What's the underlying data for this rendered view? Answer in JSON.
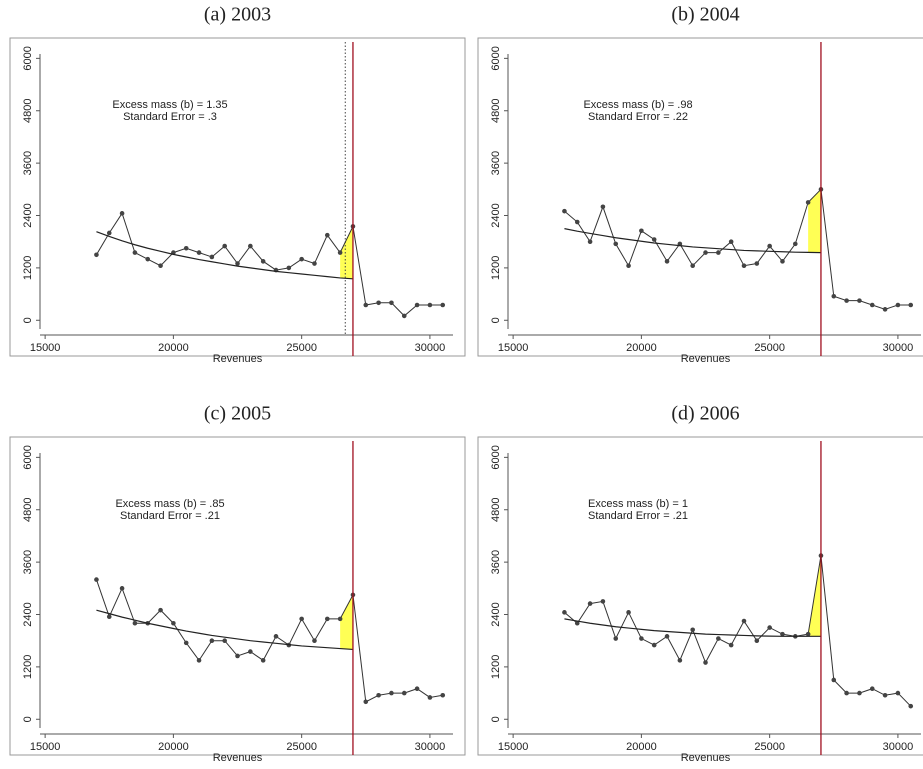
{
  "chart_data": [
    {
      "type": "line",
      "title": "(a) 2003",
      "xlabel": "Revenues",
      "annotations": [
        "Excess mass (b) = 1.35",
        "Standard Error = .3"
      ],
      "x": [
        17000,
        17500,
        18000,
        18500,
        19000,
        19500,
        20000,
        20500,
        21000,
        21500,
        22000,
        22500,
        23000,
        23500,
        24000,
        24500,
        25000,
        25500,
        26000,
        26500,
        27000,
        27500,
        28000,
        28500,
        29000,
        29500,
        30000,
        30500
      ],
      "series": [
        {
          "color": "#333333",
          "values": [
            1500,
            2000,
            2450,
            1550,
            1400,
            1250,
            1550,
            1650,
            1550,
            1450,
            1700,
            1300,
            1700,
            1350,
            1150,
            1200,
            1400,
            1300,
            1950,
            1550,
            2150,
            350,
            400,
            400,
            100,
            350,
            350,
            350
          ]
        },
        {
          "color": "#222222",
          "values": [
            2030,
            1920,
            1820,
            1730,
            1650,
            1580,
            1510,
            1450,
            1390,
            1340,
            1290,
            1240,
            1200,
            1160,
            1120,
            1090,
            1060,
            1030,
            1000,
            970,
            950,
            null,
            null,
            null,
            null,
            null,
            null,
            null
          ]
        }
      ],
      "threshold": 27000,
      "dotted_line": 26700,
      "shade": [
        26500,
        27000
      ],
      "xlim": [
        14800,
        30900
      ],
      "ylim": [
        -200,
        6100
      ],
      "xticks": [
        15000,
        20000,
        25000,
        30000
      ],
      "yticks": [
        0,
        1200,
        2400,
        3600,
        4800,
        6000
      ]
    },
    {
      "type": "line",
      "title": "(b) 2004",
      "xlabel": "Revenues",
      "annotations": [
        "Excess mass (b) = .98",
        "Standard Error = .22"
      ],
      "x": [
        17000,
        17500,
        18000,
        18500,
        19000,
        19500,
        20000,
        20500,
        21000,
        21500,
        22000,
        22500,
        23000,
        23500,
        24000,
        24500,
        25000,
        25500,
        26000,
        26500,
        27000,
        27500,
        28000,
        28500,
        29000,
        29500,
        30000,
        30500
      ],
      "series": [
        {
          "color": "#333333",
          "values": [
            2500,
            2250,
            1800,
            2600,
            1750,
            1250,
            2050,
            1850,
            1350,
            1750,
            1250,
            1550,
            1550,
            1800,
            1250,
            1300,
            1700,
            1350,
            1750,
            2700,
            3000,
            550,
            450,
            450,
            350,
            250,
            350,
            350
          ]
        },
        {
          "color": "#222222",
          "values": [
            2100,
            2040,
            1990,
            1940,
            1890,
            1850,
            1810,
            1770,
            1740,
            1710,
            1680,
            1660,
            1640,
            1620,
            1600,
            1590,
            1580,
            1570,
            1560,
            1555,
            1550,
            null,
            null,
            null,
            null,
            null,
            null,
            null
          ]
        }
      ],
      "threshold": 27000,
      "shade": [
        26500,
        27000
      ],
      "xlim": [
        14800,
        30900
      ],
      "ylim": [
        -200,
        6100
      ],
      "xticks": [
        15000,
        20000,
        25000,
        30000
      ],
      "yticks": [
        0,
        1200,
        2400,
        3600,
        4800,
        6000
      ]
    },
    {
      "type": "line",
      "title": "(c) 2005",
      "xlabel": "Revenues",
      "annotations": [
        "Excess mass (b) = .85",
        "Standard Error = .21"
      ],
      "x": [
        17000,
        17500,
        18000,
        18500,
        19000,
        19500,
        20000,
        20500,
        21000,
        21500,
        22000,
        22500,
        23000,
        23500,
        24000,
        24500,
        25000,
        25500,
        26000,
        26500,
        27000,
        27500,
        28000,
        28500,
        29000,
        29500,
        30000,
        30500
      ],
      "series": [
        {
          "color": "#333333",
          "values": [
            3200,
            2350,
            3000,
            2200,
            2200,
            2500,
            2200,
            1750,
            1350,
            1800,
            1800,
            1450,
            1550,
            1350,
            1900,
            1700,
            2300,
            1800,
            2300,
            2300,
            2850,
            400,
            550,
            600,
            600,
            700,
            500,
            550
          ]
        },
        {
          "color": "#222222",
          "values": [
            2500,
            2420,
            2340,
            2270,
            2200,
            2140,
            2080,
            2020,
            1970,
            1920,
            1880,
            1840,
            1800,
            1770,
            1740,
            1710,
            1680,
            1660,
            1640,
            1620,
            1600,
            null,
            null,
            null,
            null,
            null,
            null,
            null
          ]
        }
      ],
      "threshold": 27000,
      "shade": [
        26500,
        27000
      ],
      "xlim": [
        14800,
        30900
      ],
      "ylim": [
        -200,
        6100
      ],
      "xticks": [
        15000,
        20000,
        25000,
        30000
      ],
      "yticks": [
        0,
        1200,
        2400,
        3600,
        4800,
        6000
      ]
    },
    {
      "type": "line",
      "title": "(d) 2006",
      "xlabel": "Revenues",
      "annotations": [
        "Excess mass (b) = 1",
        "Standard Error = .21"
      ],
      "x": [
        17000,
        17500,
        18000,
        18500,
        19000,
        19500,
        20000,
        20500,
        21000,
        21500,
        22000,
        22500,
        23000,
        23500,
        24000,
        24500,
        25000,
        25500,
        26000,
        26500,
        27000,
        27500,
        28000,
        28500,
        29000,
        29500,
        30000,
        30500
      ],
      "series": [
        {
          "color": "#333333",
          "values": [
            2450,
            2200,
            2650,
            2700,
            1850,
            2450,
            1850,
            1700,
            1900,
            1350,
            2050,
            1300,
            1850,
            1700,
            2250,
            1800,
            2100,
            1950,
            1900,
            1950,
            3750,
            900,
            600,
            600,
            700,
            550,
            600,
            300
          ]
        },
        {
          "color": "#222222",
          "values": [
            2300,
            2250,
            2200,
            2160,
            2120,
            2090,
            2060,
            2030,
            2010,
            1990,
            1970,
            1950,
            1940,
            1930,
            1920,
            1910,
            1905,
            1900,
            1900,
            1900,
            1900,
            null,
            null,
            null,
            null,
            null,
            null,
            null
          ]
        }
      ],
      "threshold": 27000,
      "shade": [
        26500,
        27000
      ],
      "xlim": [
        14800,
        30900
      ],
      "ylim": [
        -200,
        6100
      ],
      "xticks": [
        15000,
        20000,
        25000,
        30000
      ],
      "yticks": [
        0,
        1200,
        2400,
        3600,
        4800,
        6000
      ]
    }
  ]
}
